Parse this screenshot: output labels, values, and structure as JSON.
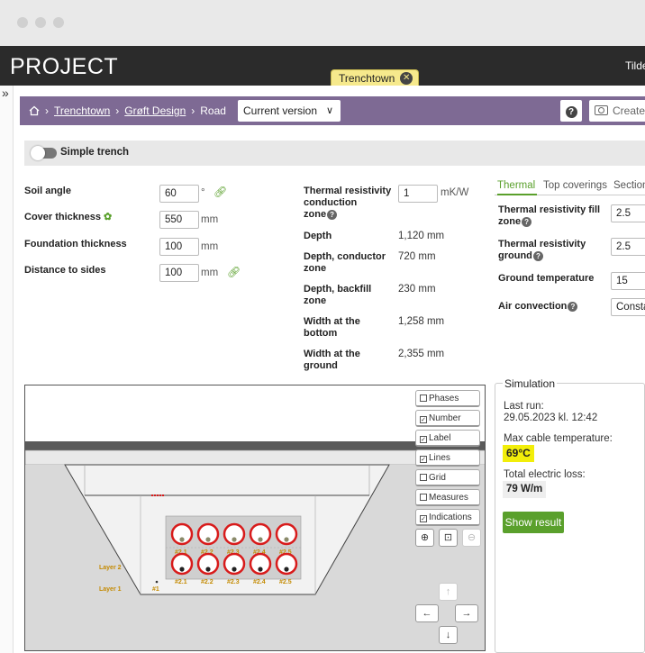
{
  "app": {
    "title": "PROJECT",
    "user_partial": "Tilde"
  },
  "tab": {
    "label": "Trenchtown",
    "close": "✕"
  },
  "rail": {
    "toggle": "»"
  },
  "breadcrumb": {
    "home_icon": "home-icon",
    "items": [
      "Trenchtown",
      "Grøft Design",
      "Road"
    ],
    "version": "Current version",
    "help": "?",
    "create_label": "Create s"
  },
  "toggle": {
    "label": "Simple trench",
    "on": false
  },
  "left_fields": [
    {
      "label": "Soil angle",
      "value": "60",
      "unit": "°"
    },
    {
      "label": "Cover thickness",
      "value": "550",
      "unit": "mm"
    },
    {
      "label": "Foundation thickness",
      "value": "100",
      "unit": "mm"
    },
    {
      "label": "Distance to sides",
      "value": "100",
      "unit": "mm"
    }
  ],
  "middle": {
    "resistivity_label_1": "Thermal resistivity",
    "resistivity_label_2": "conduction",
    "resistivity_label_3": "zone",
    "resistivity_value": "1",
    "resistivity_unit": "mK/W",
    "rows": [
      {
        "label1": "Depth",
        "label2": "",
        "value": "1,120 mm"
      },
      {
        "label1": "Depth, conductor",
        "label2": "zone",
        "value": "720 mm"
      },
      {
        "label1": "Depth, backfill",
        "label2": "zone",
        "value": "230 mm"
      },
      {
        "label1": "Width at the",
        "label2": "bottom",
        "value": "1,258 mm"
      },
      {
        "label1": "Width at the",
        "label2": "ground",
        "value": "2,355 mm"
      }
    ]
  },
  "right_tabs": [
    "Thermal",
    "Top coverings",
    "Section"
  ],
  "thermal": [
    {
      "label1": "Thermal resistivity fill",
      "label2": "zone",
      "value": "2.5"
    },
    {
      "label1": "Thermal resistivity",
      "label2": "ground",
      "value": "2.5"
    },
    {
      "label1": "Ground temperature",
      "label2": "",
      "value": "15"
    },
    {
      "label1": "Air convection",
      "label2": "",
      "value": "Consta"
    }
  ],
  "canvas_buttons": [
    {
      "label": "Phases",
      "checked": false
    },
    {
      "label": "Number",
      "checked": true
    },
    {
      "label": "Label",
      "checked": true
    },
    {
      "label": "Lines",
      "checked": true
    },
    {
      "label": "Grid",
      "checked": false
    },
    {
      "label": "Measures",
      "checked": false
    },
    {
      "label": "Indications",
      "checked": true
    }
  ],
  "drawing": {
    "layer_labels": [
      "Layer 2",
      "Layer 1"
    ],
    "ground_marker": "#1",
    "top_row": [
      "#2.1",
      "#2.2",
      "#2.3",
      "#2.4",
      "#2.5"
    ],
    "bottom_row": [
      "#2.1",
      "#2.2",
      "#2.3",
      "#2.4",
      "#2.5"
    ]
  },
  "simulation": {
    "title": "Simulation",
    "last_run_label": "Last run:",
    "last_run_value": "29.05.2023 kl. 12:42",
    "max_temp_label": "Max cable temperature:",
    "max_temp_value": "69°C",
    "loss_label": "Total electric loss:",
    "loss_value": "79 W/m",
    "button": "Show result"
  },
  "colors": {
    "accent": "#5aa02c",
    "breadcrumb_bg": "#7e6a94",
    "appbar": "#2b2b2b",
    "tab_bg": "#f6e98c",
    "highlight": "#f2ee0a",
    "cable_ring": "#d81b1b"
  }
}
